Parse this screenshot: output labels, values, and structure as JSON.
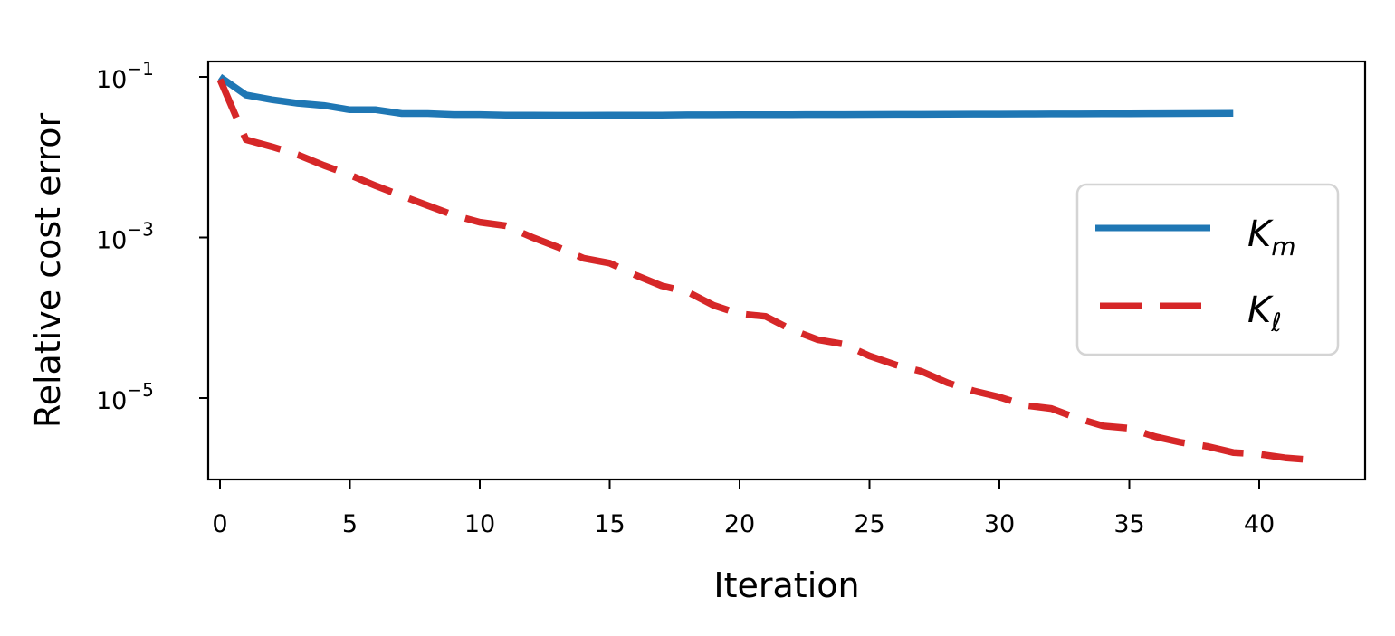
{
  "chart_data": {
    "type": "line",
    "title": "",
    "xlabel": "Iteration",
    "ylabel": "Relative cost error",
    "yscale": "log",
    "xlim": [
      -0.5,
      44
    ],
    "ylim": [
      1.1e-06,
      0.15
    ],
    "xticks": [
      0,
      5,
      10,
      15,
      20,
      25,
      30,
      35,
      40
    ],
    "xtick_labels": [
      "0",
      "5",
      "10",
      "15",
      "20",
      "25",
      "30",
      "35",
      "40"
    ],
    "yticks": [
      0.1,
      0.001,
      1e-05
    ],
    "ytick_labels": [
      {
        "base": "10",
        "exp": "−1"
      },
      {
        "base": "10",
        "exp": "−3"
      },
      {
        "base": "10",
        "exp": "−5"
      }
    ],
    "grid": false,
    "legend_position": "center right",
    "series": [
      {
        "name": "K_m",
        "label_main": "K",
        "label_sub": "m",
        "color": "#1f77b4",
        "linestyle": "solid",
        "x": [
          0,
          1,
          2,
          3,
          4,
          5,
          6,
          7,
          8,
          9,
          10,
          11,
          12,
          13,
          14,
          15,
          16,
          17,
          18,
          19,
          20,
          21,
          22,
          23,
          24,
          25,
          26,
          27,
          28,
          29,
          30,
          31,
          32,
          33,
          34,
          35,
          36,
          37,
          38,
          39
        ],
        "values": [
          0.1,
          0.0595,
          0.052,
          0.047,
          0.044,
          0.039,
          0.039,
          0.035,
          0.035,
          0.034,
          0.034,
          0.0335,
          0.0335,
          0.0333,
          0.0333,
          0.0334,
          0.0335,
          0.0335,
          0.0337,
          0.0337,
          0.0338,
          0.0338,
          0.0339,
          0.034,
          0.034,
          0.0341,
          0.0342,
          0.0342,
          0.0343,
          0.0344,
          0.0344,
          0.0345,
          0.0346,
          0.0346,
          0.0347,
          0.0348,
          0.0349,
          0.035,
          0.0351,
          0.0352
        ]
      },
      {
        "name": "K_ℓ",
        "label_main": "K",
        "label_sub": "ℓ",
        "color": "#d62728",
        "linestyle": "dashed",
        "x": [
          0,
          1,
          2,
          3,
          4,
          5,
          6,
          7,
          8,
          9,
          10,
          11,
          12,
          13,
          14,
          15,
          16,
          17,
          18,
          19,
          20,
          21,
          22,
          23,
          24,
          25,
          26,
          27,
          28,
          29,
          30,
          31,
          32,
          33,
          34,
          35,
          36,
          37,
          38,
          39,
          40,
          41,
          42
        ],
        "values": [
          0.093,
          0.0165,
          0.0135,
          0.0107,
          0.0079,
          0.006,
          0.0044,
          0.0033,
          0.0025,
          0.0019,
          0.00155,
          0.0014,
          0.00101,
          0.00076,
          0.00055,
          0.00048,
          0.00034,
          0.00025,
          0.00021,
          0.000143,
          0.000112,
          0.000104,
          7.1e-05,
          5.35e-05,
          4.7e-05,
          3.35e-05,
          2.6e-05,
          2.15e-05,
          1.55e-05,
          1.23e-05,
          1.03e-05,
          8.1e-06,
          7.4e-06,
          5.6e-06,
          4.5e-06,
          4.2e-06,
          3.3e-06,
          2.8e-06,
          2.5e-06,
          2.1e-06,
          2e-06,
          1.8e-06,
          1.7e-06
        ]
      }
    ]
  }
}
